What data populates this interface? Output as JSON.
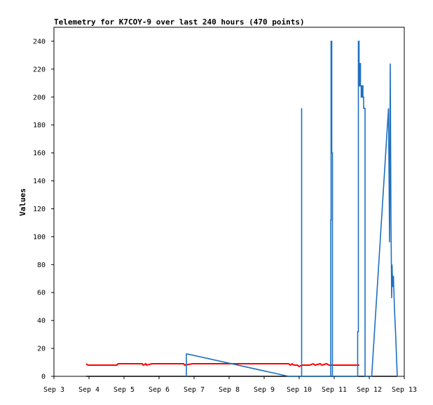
{
  "chart_data": {
    "type": "line",
    "title": "Telemetry for K7COY-9 over last 240 hours (470 points)",
    "xlabel": "",
    "ylabel": "Values",
    "xlim": [
      3.0,
      13.0
    ],
    "ylim": [
      0,
      250
    ],
    "x_ticks": [
      {
        "x": 3.0,
        "label": "Sep 3"
      },
      {
        "x": 4.0,
        "label": "Sep 4"
      },
      {
        "x": 5.0,
        "label": "Sep 5"
      },
      {
        "x": 6.0,
        "label": "Sep 6"
      },
      {
        "x": 7.0,
        "label": "Sep 7"
      },
      {
        "x": 8.0,
        "label": "Sep 8"
      },
      {
        "x": 9.0,
        "label": "Sep 9"
      },
      {
        "x": 10.0,
        "label": "Sep 10"
      },
      {
        "x": 11.0,
        "label": "Sep 11"
      },
      {
        "x": 12.0,
        "label": "Sep 12"
      },
      {
        "x": 13.0,
        "label": "Sep 13"
      }
    ],
    "y_ticks": [
      0,
      20,
      40,
      60,
      80,
      100,
      120,
      140,
      160,
      180,
      200,
      220,
      240
    ],
    "grid": false,
    "series": [
      {
        "color": "#ff0000",
        "x": [
          3.92,
          3.97,
          4.8,
          4.83,
          5.05,
          5.52,
          5.55,
          5.62,
          5.64,
          5.8,
          6.25,
          6.7,
          6.73,
          6.95,
          7.2,
          7.6,
          8.0,
          8.5,
          9.0,
          9.7,
          9.75,
          9.8,
          9.85,
          9.95,
          10.0,
          10.08,
          10.15,
          10.3,
          10.4,
          10.45,
          10.6,
          10.65,
          10.78,
          10.85,
          10.95,
          11.05,
          11.3,
          11.6,
          11.7,
          11.72
        ],
        "y": [
          9,
          8,
          8,
          9,
          9,
          9,
          8,
          9,
          8,
          9,
          9,
          9,
          8,
          9,
          9,
          9,
          9,
          9,
          9,
          9,
          8,
          9,
          8,
          8,
          7,
          8,
          8,
          8,
          9,
          8,
          9,
          8,
          9,
          8,
          8,
          8,
          8,
          8,
          8,
          8
        ]
      },
      {
        "color": "#000000",
        "x": [
          3.92,
          11.72,
          11.72,
          12.65,
          12.67,
          12.8
        ],
        "y": [
          0,
          0,
          0,
          0,
          0,
          0
        ]
      },
      {
        "color": "#1f6fbf",
        "x": [
          6.78,
          6.78,
          6.81,
          9.7,
          10.07,
          10.07,
          10.07,
          10.9,
          10.9,
          10.91,
          10.91,
          10.93,
          10.93,
          10.95,
          10.95,
          11.67,
          11.67,
          11.69,
          11.69,
          11.71,
          11.71,
          11.73,
          11.73,
          11.75,
          11.75,
          11.77,
          11.77,
          11.79,
          11.79,
          11.82,
          11.82,
          11.84,
          11.84,
          11.86,
          11.86,
          11.88,
          11.88,
          11.9,
          11.9,
          12.07,
          12.55,
          12.55,
          12.58,
          12.58,
          12.6,
          12.6,
          12.62,
          12.62,
          12.64,
          12.64,
          12.65,
          12.65,
          12.67,
          12.67,
          12.69,
          12.69,
          12.72,
          12.72,
          12.75,
          12.8
        ],
        "y": [
          0,
          16,
          16,
          0,
          0,
          192,
          0,
          0,
          112,
          112,
          240,
          240,
          160,
          160,
          0,
          0,
          32,
          32,
          240,
          240,
          208,
          208,
          224,
          224,
          208,
          208,
          200,
          200,
          208,
          208,
          200,
          200,
          192,
          192,
          192,
          192,
          0,
          0,
          0,
          0,
          192,
          192,
          96,
          96,
          224,
          224,
          112,
          112,
          56,
          56,
          80,
          80,
          64,
          64,
          72,
          72,
          48,
          48,
          32,
          0
        ]
      }
    ]
  }
}
